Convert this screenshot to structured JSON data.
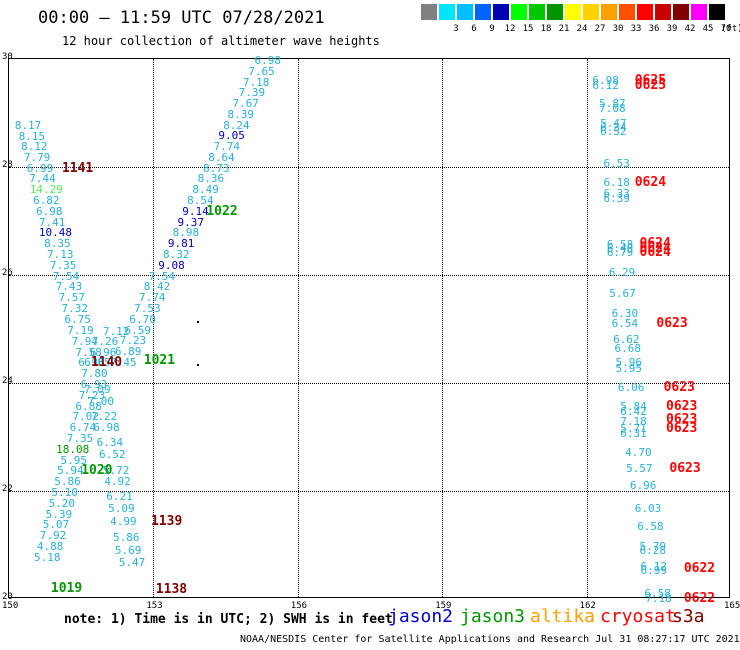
{
  "title": "00:00 – 11:59 UTC 07/28/2021",
  "subtitle": "12 hour collection of altimeter wave heights",
  "legend": {
    "unit": "(ft)",
    "bins": [
      {
        "label": "",
        "color": "#808080"
      },
      {
        "label": "3",
        "color": "#00e5ff"
      },
      {
        "label": "6",
        "color": "#00bfff"
      },
      {
        "label": "9",
        "color": "#0064ff"
      },
      {
        "label": "12",
        "color": "#0000b4"
      },
      {
        "label": "15",
        "color": "#00ff00"
      },
      {
        "label": "18",
        "color": "#00c800"
      },
      {
        "label": "21",
        "color": "#009600"
      },
      {
        "label": "24",
        "color": "#ffff00"
      },
      {
        "label": "27",
        "color": "#ffd200"
      },
      {
        "label": "30",
        "color": "#ffa000"
      },
      {
        "label": "33",
        "color": "#ff5000"
      },
      {
        "label": "36",
        "color": "#ff0000"
      },
      {
        "label": "39",
        "color": "#c80000"
      },
      {
        "label": "42",
        "color": "#800000"
      },
      {
        "label": "45",
        "color": "#ff00ff"
      },
      {
        "label": "70",
        "color": "#000000"
      }
    ]
  },
  "axes": {
    "x_ticks": [
      "150",
      "153",
      "156",
      "159",
      "162",
      "165"
    ],
    "y_ticks": [
      "20",
      "22",
      "24",
      "26",
      "28",
      "30"
    ],
    "lon_range": [
      150,
      165
    ],
    "lat_range": [
      20,
      30
    ]
  },
  "observations": [
    {
      "v": "6.98",
      "lon": 155.1,
      "lat": 29.98,
      "c": "#2ab0d8"
    },
    {
      "v": "7.65",
      "lon": 154.97,
      "lat": 29.78,
      "c": "#2ab0d8"
    },
    {
      "v": "7.18",
      "lon": 154.86,
      "lat": 29.58,
      "c": "#2ab0d8"
    },
    {
      "v": "7.39",
      "lon": 154.77,
      "lat": 29.39,
      "c": "#2ab0d8"
    },
    {
      "v": "7.67",
      "lon": 154.64,
      "lat": 29.19,
      "c": "#2ab0d8"
    },
    {
      "v": "8.39",
      "lon": 154.54,
      "lat": 28.99,
      "c": "#2ab0d8"
    },
    {
      "v": "8.24",
      "lon": 154.45,
      "lat": 28.78,
      "c": "#2ab0d8"
    },
    {
      "v": "9.05",
      "lon": 154.35,
      "lat": 28.59,
      "c": "#0000b4"
    },
    {
      "v": "7.74",
      "lon": 154.25,
      "lat": 28.38,
      "c": "#2ab0d8"
    },
    {
      "v": "8.64",
      "lon": 154.14,
      "lat": 28.18,
      "c": "#2ab0d8"
    },
    {
      "v": "8.73",
      "lon": 154.03,
      "lat": 27.98,
      "c": "#2ab0d8"
    },
    {
      "v": "8.36",
      "lon": 153.92,
      "lat": 27.79,
      "c": "#2ab0d8"
    },
    {
      "v": "8.49",
      "lon": 153.81,
      "lat": 27.59,
      "c": "#2ab0d8"
    },
    {
      "v": "8.54",
      "lon": 153.7,
      "lat": 27.39,
      "c": "#2ab0d8"
    },
    {
      "v": "9.14",
      "lon": 153.6,
      "lat": 27.19,
      "c": "#0000b4"
    },
    {
      "v": "9.37",
      "lon": 153.5,
      "lat": 26.99,
      "c": "#0000b4"
    },
    {
      "v": "8.98",
      "lon": 153.4,
      "lat": 26.79,
      "c": "#2ab0d8"
    },
    {
      "v": "9.81",
      "lon": 153.3,
      "lat": 26.59,
      "c": "#0000b4"
    },
    {
      "v": "8.32",
      "lon": 153.2,
      "lat": 26.39,
      "c": "#2ab0d8"
    },
    {
      "v": "9.08",
      "lon": 153.1,
      "lat": 26.19,
      "c": "#0000b4"
    },
    {
      "v": "7.54",
      "lon": 152.9,
      "lat": 25.99,
      "c": "#2ab0d8"
    },
    {
      "v": "8.42",
      "lon": 152.8,
      "lat": 25.79,
      "c": "#2ab0d8"
    },
    {
      "v": "7.74",
      "lon": 152.7,
      "lat": 25.59,
      "c": "#2ab0d8"
    },
    {
      "v": "7.53",
      "lon": 152.6,
      "lat": 25.39,
      "c": "#2ab0d8"
    },
    {
      "v": "6.70",
      "lon": 152.5,
      "lat": 25.19,
      "c": "#2ab0d8"
    },
    {
      "v": "6.59",
      "lon": 152.4,
      "lat": 24.99,
      "c": "#2ab0d8"
    },
    {
      "v": "7.23",
      "lon": 152.3,
      "lat": 24.79,
      "c": "#2ab0d8"
    },
    {
      "v": "6.89",
      "lon": 152.2,
      "lat": 24.59,
      "c": "#2ab0d8"
    },
    {
      "v": "7.45",
      "lon": 152.1,
      "lat": 24.39,
      "c": "#2ab0d8"
    },
    {
      "v": "8.17",
      "lon": 150.12,
      "lat": 28.78,
      "c": "#2ab0d8"
    },
    {
      "v": "8.15",
      "lon": 150.2,
      "lat": 28.58,
      "c": "#2ab0d8"
    },
    {
      "v": "8.12",
      "lon": 150.25,
      "lat": 28.38,
      "c": "#2ab0d8"
    },
    {
      "v": "7.79",
      "lon": 150.31,
      "lat": 28.18,
      "c": "#2ab0d8"
    },
    {
      "v": "6.99",
      "lon": 150.37,
      "lat": 27.98,
      "c": "#2ab0d8"
    },
    {
      "v": "7.44",
      "lon": 150.42,
      "lat": 27.79,
      "c": "#2ab0d8"
    },
    {
      "v": "14.29",
      "lon": 150.43,
      "lat": 27.59,
      "c": "#55ee55"
    },
    {
      "v": "6.82",
      "lon": 150.5,
      "lat": 27.39,
      "c": "#2ab0d8"
    },
    {
      "v": "6.98",
      "lon": 150.56,
      "lat": 27.19,
      "c": "#2ab0d8"
    },
    {
      "v": "7.41",
      "lon": 150.62,
      "lat": 26.99,
      "c": "#2ab0d8"
    },
    {
      "v": "10.48",
      "lon": 150.62,
      "lat": 26.79,
      "c": "#0000b4"
    },
    {
      "v": "8.35",
      "lon": 150.73,
      "lat": 26.59,
      "c": "#2ab0d8"
    },
    {
      "v": "7.13",
      "lon": 150.79,
      "lat": 26.39,
      "c": "#2ab0d8"
    },
    {
      "v": "7.35",
      "lon": 150.85,
      "lat": 26.19,
      "c": "#2ab0d8"
    },
    {
      "v": "7.54",
      "lon": 150.91,
      "lat": 25.99,
      "c": "#2ab0d8"
    },
    {
      "v": "7.43",
      "lon": 150.97,
      "lat": 25.79,
      "c": "#2ab0d8"
    },
    {
      "v": "7.57",
      "lon": 151.03,
      "lat": 25.59,
      "c": "#2ab0d8"
    },
    {
      "v": "7.32",
      "lon": 151.09,
      "lat": 25.39,
      "c": "#2ab0d8"
    },
    {
      "v": "6.75",
      "lon": 151.15,
      "lat": 25.19,
      "c": "#2ab0d8"
    },
    {
      "v": "7.19",
      "lon": 151.21,
      "lat": 24.99,
      "c": "#2ab0d8"
    },
    {
      "v": "7.12",
      "lon": 151.95,
      "lat": 24.97,
      "c": "#2ab0d8"
    },
    {
      "v": "7.94",
      "lon": 151.3,
      "lat": 24.78,
      "c": "#2ab0d8"
    },
    {
      "v": "7.26",
      "lon": 151.72,
      "lat": 24.78,
      "c": "#2ab0d8"
    },
    {
      "v": "7.58",
      "lon": 151.38,
      "lat": 24.58,
      "c": "#2ab0d8"
    },
    {
      "v": "6.96",
      "lon": 151.68,
      "lat": 24.58,
      "c": "#2ab0d8"
    },
    {
      "v": "6.96",
      "lon": 151.44,
      "lat": 24.38,
      "c": "#2ab0d8"
    },
    {
      "v": "6.85",
      "lon": 151.56,
      "lat": 24.38,
      "c": "#2ab0d8"
    },
    {
      "v": "7.80",
      "lon": 151.5,
      "lat": 24.18,
      "c": "#2ab0d8"
    },
    {
      "v": "6.93",
      "lon": 151.49,
      "lat": 23.98,
      "c": "#2ab0d8"
    },
    {
      "v": "7.09",
      "lon": 151.56,
      "lat": 23.88,
      "c": "#2ab0d8"
    },
    {
      "v": "7.23",
      "lon": 151.45,
      "lat": 23.78,
      "c": "#2ab0d8"
    },
    {
      "v": "7.00",
      "lon": 151.63,
      "lat": 23.66,
      "c": "#2ab0d8"
    },
    {
      "v": "6.88",
      "lon": 151.38,
      "lat": 23.58,
      "c": "#2ab0d8"
    },
    {
      "v": "7.02",
      "lon": 151.32,
      "lat": 23.38,
      "c": "#2ab0d8"
    },
    {
      "v": "7.22",
      "lon": 151.7,
      "lat": 23.38,
      "c": "#2ab0d8"
    },
    {
      "v": "6.74",
      "lon": 151.26,
      "lat": 23.18,
      "c": "#2ab0d8"
    },
    {
      "v": "6.98",
      "lon": 151.75,
      "lat": 23.18,
      "c": "#2ab0d8"
    },
    {
      "v": "7.35",
      "lon": 151.2,
      "lat": 22.98,
      "c": "#2ab0d8"
    },
    {
      "v": "6.34",
      "lon": 151.82,
      "lat": 22.9,
      "c": "#2ab0d8"
    },
    {
      "v": "18.08",
      "lon": 150.98,
      "lat": 22.78,
      "c": "#009600"
    },
    {
      "v": "6.52",
      "lon": 151.87,
      "lat": 22.68,
      "c": "#2ab0d8"
    },
    {
      "v": "5.95",
      "lon": 151.07,
      "lat": 22.58,
      "c": "#2ab0d8"
    },
    {
      "v": "5.72",
      "lon": 151.95,
      "lat": 22.38,
      "c": "#2ab0d8"
    },
    {
      "v": "5.94",
      "lon": 151.0,
      "lat": 22.38,
      "c": "#2ab0d8"
    },
    {
      "v": "5.86",
      "lon": 150.94,
      "lat": 22.18,
      "c": "#2ab0d8"
    },
    {
      "v": "4.92",
      "lon": 151.98,
      "lat": 22.18,
      "c": "#2ab0d8"
    },
    {
      "v": "5.10",
      "lon": 150.88,
      "lat": 21.98,
      "c": "#2ab0d8"
    },
    {
      "v": "6.21",
      "lon": 152.02,
      "lat": 21.9,
      "c": "#2ab0d8"
    },
    {
      "v": "5.20",
      "lon": 150.82,
      "lat": 21.78,
      "c": "#2ab0d8"
    },
    {
      "v": "5.09",
      "lon": 152.06,
      "lat": 21.68,
      "c": "#2ab0d8"
    },
    {
      "v": "5.39",
      "lon": 150.76,
      "lat": 21.58,
      "c": "#2ab0d8"
    },
    {
      "v": "4.99",
      "lon": 152.1,
      "lat": 21.45,
      "c": "#2ab0d8"
    },
    {
      "v": "5.07",
      "lon": 150.7,
      "lat": 21.38,
      "c": "#2ab0d8"
    },
    {
      "v": "7.92",
      "lon": 150.64,
      "lat": 21.18,
      "c": "#2ab0d8"
    },
    {
      "v": "5.86",
      "lon": 152.16,
      "lat": 21.15,
      "c": "#2ab0d8"
    },
    {
      "v": "4.88",
      "lon": 150.58,
      "lat": 20.98,
      "c": "#2ab0d8"
    },
    {
      "v": "5.69",
      "lon": 152.2,
      "lat": 20.9,
      "c": "#2ab0d8"
    },
    {
      "v": "5.18",
      "lon": 150.52,
      "lat": 20.78,
      "c": "#2ab0d8"
    },
    {
      "v": "5.47",
      "lon": 152.28,
      "lat": 20.68,
      "c": "#2ab0d8"
    },
    {
      "v": "6.98",
      "lon": 162.12,
      "lat": 29.62,
      "c": "#2ab0d8"
    },
    {
      "v": "6.12",
      "lon": 162.12,
      "lat": 29.52,
      "c": "#2ab0d8"
    },
    {
      "v": "5.87",
      "lon": 162.26,
      "lat": 29.18,
      "c": "#2ab0d8"
    },
    {
      "v": "7.08",
      "lon": 162.26,
      "lat": 29.1,
      "c": "#2ab0d8"
    },
    {
      "v": "5.47",
      "lon": 162.28,
      "lat": 28.82,
      "c": "#2ab0d8"
    },
    {
      "v": "6.34",
      "lon": 162.28,
      "lat": 28.74,
      "c": "#2ab0d8"
    },
    {
      "v": "6.52",
      "lon": 162.28,
      "lat": 28.66,
      "c": "#2ab0d8"
    },
    {
      "v": "6.53",
      "lon": 162.35,
      "lat": 28.08,
      "c": "#2ab0d8"
    },
    {
      "v": "6.18",
      "lon": 162.35,
      "lat": 27.72,
      "c": "#2ab0d8"
    },
    {
      "v": "6.33",
      "lon": 162.35,
      "lat": 27.52,
      "c": "#2ab0d8"
    },
    {
      "v": "6.39",
      "lon": 162.35,
      "lat": 27.42,
      "c": "#2ab0d8"
    },
    {
      "v": "6.58",
      "lon": 162.42,
      "lat": 26.58,
      "c": "#2ab0d8"
    },
    {
      "v": "6.40",
      "lon": 162.42,
      "lat": 26.5,
      "c": "#2ab0d8"
    },
    {
      "v": "6.79",
      "lon": 162.42,
      "lat": 26.42,
      "c": "#2ab0d8"
    },
    {
      "v": "6.29",
      "lon": 162.46,
      "lat": 26.06,
      "c": "#2ab0d8"
    },
    {
      "v": "5.67",
      "lon": 162.47,
      "lat": 25.66,
      "c": "#2ab0d8"
    },
    {
      "v": "6.30",
      "lon": 162.52,
      "lat": 25.3,
      "c": "#2ab0d8"
    },
    {
      "v": "6.54",
      "lon": 162.52,
      "lat": 25.12,
      "c": "#2ab0d8"
    },
    {
      "v": "6.62",
      "lon": 162.55,
      "lat": 24.82,
      "c": "#2ab0d8"
    },
    {
      "v": "6.68",
      "lon": 162.58,
      "lat": 24.64,
      "c": "#2ab0d8"
    },
    {
      "v": "5.96",
      "lon": 162.6,
      "lat": 24.38,
      "c": "#2ab0d8"
    },
    {
      "v": "5.95",
      "lon": 162.6,
      "lat": 24.28,
      "c": "#2ab0d8"
    },
    {
      "v": "6.06",
      "lon": 162.65,
      "lat": 23.92,
      "c": "#2ab0d8"
    },
    {
      "v": "5.84",
      "lon": 162.7,
      "lat": 23.58,
      "c": "#2ab0d8"
    },
    {
      "v": "6.42",
      "lon": 162.7,
      "lat": 23.48,
      "c": "#2ab0d8"
    },
    {
      "v": "7.18",
      "lon": 162.7,
      "lat": 23.3,
      "c": "#2ab0d8"
    },
    {
      "v": "5.71",
      "lon": 162.7,
      "lat": 23.16,
      "c": "#2ab0d8"
    },
    {
      "v": "6.31",
      "lon": 162.7,
      "lat": 23.08,
      "c": "#2ab0d8"
    },
    {
      "v": "4.70",
      "lon": 162.8,
      "lat": 22.72,
      "c": "#2ab0d8"
    },
    {
      "v": "5.57",
      "lon": 162.82,
      "lat": 22.42,
      "c": "#2ab0d8"
    },
    {
      "v": "6.96",
      "lon": 162.9,
      "lat": 22.12,
      "c": "#2ab0d8"
    },
    {
      "v": "6.03",
      "lon": 163.0,
      "lat": 21.68,
      "c": "#2ab0d8"
    },
    {
      "v": "6.58",
      "lon": 163.05,
      "lat": 21.35,
      "c": "#2ab0d8"
    },
    {
      "v": "5.79",
      "lon": 163.1,
      "lat": 20.98,
      "c": "#2ab0d8"
    },
    {
      "v": "6.28",
      "lon": 163.1,
      "lat": 20.9,
      "c": "#2ab0d8"
    },
    {
      "v": "6.12",
      "lon": 163.12,
      "lat": 20.62,
      "c": "#2ab0d8"
    },
    {
      "v": "6.99",
      "lon": 163.12,
      "lat": 20.54,
      "c": "#2ab0d8"
    },
    {
      "v": "6.58",
      "lon": 163.2,
      "lat": 20.12,
      "c": "#2ab0d8"
    },
    {
      "v": "7.18",
      "lon": 163.22,
      "lat": 20.02,
      "c": "#2ab0d8"
    }
  ],
  "passes": [
    {
      "v": "1141",
      "lon": 151.1,
      "lat": 27.98,
      "c": "#800000"
    },
    {
      "v": "1022",
      "lon": 154.1,
      "lat": 27.19,
      "c": "#009600"
    },
    {
      "v": "1021",
      "lon": 152.8,
      "lat": 24.42,
      "c": "#009600"
    },
    {
      "v": "1140",
      "lon": 151.7,
      "lat": 24.38,
      "c": "#800000"
    },
    {
      "v": "1020",
      "lon": 151.5,
      "lat": 22.38,
      "c": "#009600"
    },
    {
      "v": "1139",
      "lon": 152.95,
      "lat": 21.45,
      "c": "#800000"
    },
    {
      "v": "1019",
      "lon": 150.87,
      "lat": 20.2,
      "c": "#009600"
    },
    {
      "v": "1138",
      "lon": 153.05,
      "lat": 20.18,
      "c": "#800000"
    },
    {
      "v": "0625",
      "lon": 163.0,
      "lat": 29.62,
      "c": "#ff0000"
    },
    {
      "v": "0625",
      "lon": 163.0,
      "lat": 29.52,
      "c": "#ff0000"
    },
    {
      "v": "0624",
      "lon": 163.0,
      "lat": 27.72,
      "c": "#ff0000"
    },
    {
      "v": "0624",
      "lon": 163.1,
      "lat": 26.6,
      "c": "#ff0000"
    },
    {
      "v": "0624",
      "lon": 163.1,
      "lat": 26.5,
      "c": "#ff0000"
    },
    {
      "v": "0624",
      "lon": 163.1,
      "lat": 26.42,
      "c": "#ff0000"
    },
    {
      "v": "0623",
      "lon": 163.45,
      "lat": 25.12,
      "c": "#ff0000"
    },
    {
      "v": "0623",
      "lon": 163.6,
      "lat": 23.92,
      "c": "#ff0000"
    },
    {
      "v": "0623",
      "lon": 163.65,
      "lat": 23.58,
      "c": "#ff0000"
    },
    {
      "v": "0623",
      "lon": 163.65,
      "lat": 23.34,
      "c": "#ff0000"
    },
    {
      "v": "0623",
      "lon": 163.65,
      "lat": 23.16,
      "c": "#ff0000"
    },
    {
      "v": "0623",
      "lon": 163.72,
      "lat": 22.42,
      "c": "#ff0000"
    },
    {
      "v": "0622",
      "lon": 164.02,
      "lat": 20.58,
      "c": "#ff0000"
    },
    {
      "v": "0622",
      "lon": 164.02,
      "lat": 20.02,
      "c": "#ff0000"
    }
  ],
  "dots": [
    {
      "lon": 153.9,
      "lat": 25.15
    },
    {
      "lon": 153.9,
      "lat": 24.35
    }
  ],
  "note": "note: 1) Time is in UTC; 2) SWH is in feet",
  "satellites": [
    {
      "name": "jason2",
      "color": "#0000cc"
    },
    {
      "name": "jason3",
      "color": "#009600"
    },
    {
      "name": "altika",
      "color": "#ffa000"
    },
    {
      "name": "cryosat",
      "color": "#ff0000"
    },
    {
      "name": "s3a",
      "color": "#800000"
    }
  ],
  "credit": "NOAA/NESDIS Center for Satellite Applications and Research   Jul 31 08:27:17 UTC 2021"
}
